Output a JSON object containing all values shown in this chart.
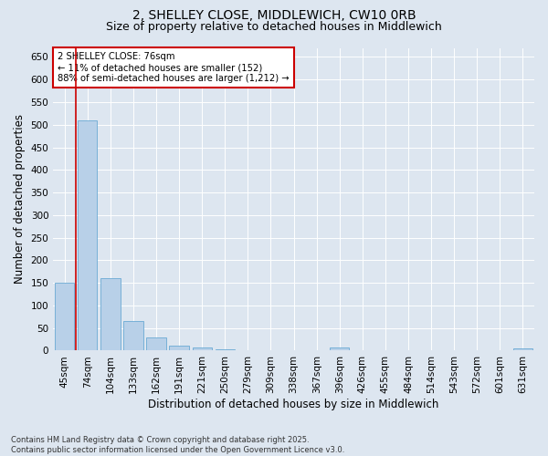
{
  "title_line1": "2, SHELLEY CLOSE, MIDDLEWICH, CW10 0RB",
  "title_line2": "Size of property relative to detached houses in Middlewich",
  "xlabel": "Distribution of detached houses by size in Middlewich",
  "ylabel": "Number of detached properties",
  "categories": [
    "45sqm",
    "74sqm",
    "104sqm",
    "133sqm",
    "162sqm",
    "191sqm",
    "221sqm",
    "250sqm",
    "279sqm",
    "309sqm",
    "338sqm",
    "367sqm",
    "396sqm",
    "426sqm",
    "455sqm",
    "484sqm",
    "514sqm",
    "543sqm",
    "572sqm",
    "601sqm",
    "631sqm"
  ],
  "values": [
    150,
    510,
    160,
    65,
    30,
    12,
    7,
    3,
    1,
    0,
    0,
    0,
    7,
    0,
    0,
    0,
    0,
    0,
    0,
    0,
    5
  ],
  "bar_color": "#b8d0e8",
  "bar_edge_color": "#6aaad4",
  "ylim": [
    0,
    670
  ],
  "yticks": [
    0,
    50,
    100,
    150,
    200,
    250,
    300,
    350,
    400,
    450,
    500,
    550,
    600,
    650
  ],
  "marker_color": "#cc0000",
  "annotation_text": "2 SHELLEY CLOSE: 76sqm\n← 11% of detached houses are smaller (152)\n88% of semi-detached houses are larger (1,212) →",
  "annotation_border_color": "#cc0000",
  "footer_line1": "Contains HM Land Registry data © Crown copyright and database right 2025.",
  "footer_line2": "Contains public sector information licensed under the Open Government Licence v3.0.",
  "bg_color": "#dde6f0",
  "plot_bg_color": "#dde6f0",
  "grid_color": "#ffffff",
  "title_fontsize": 10,
  "subtitle_fontsize": 9,
  "label_fontsize": 8.5,
  "tick_fontsize": 7.5,
  "footer_fontsize": 6
}
